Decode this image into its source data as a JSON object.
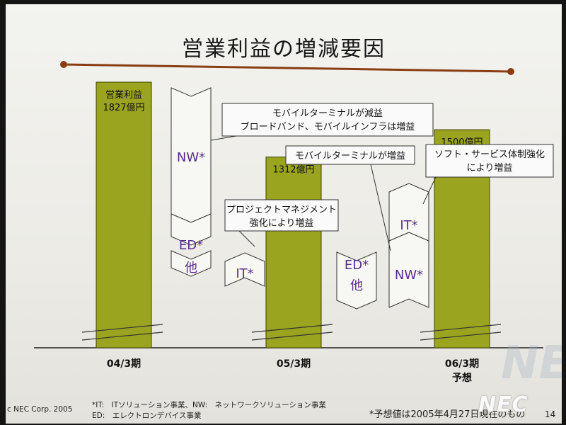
{
  "title": "営業利益の増減要因",
  "colors": {
    "bar": "#9aa41f",
    "bar_stroke": "#3c4004",
    "accent": "#8a3d12",
    "arrow_label": "#5a2d8a"
  },
  "chart_data": {
    "type": "bar",
    "subtype": "waterfall",
    "title": "営業利益の増減要因",
    "unit": "億円",
    "series_label": "営業利益",
    "categories": [
      "04/3期",
      "05/3期",
      "06/3期 予想"
    ],
    "totals": [
      {
        "category": "04/3期",
        "value": 1827,
        "label": "1827億円",
        "header": "営業利益"
      },
      {
        "category": "05/3期",
        "value": 1312,
        "label": "1312億円"
      },
      {
        "category": "06/3期 予想",
        "value": 1500,
        "label": "1500億円"
      }
    ],
    "x_labels": [
      {
        "line1": "04/3期",
        "line2": ""
      },
      {
        "line1": "05/3期",
        "line2": ""
      },
      {
        "line1": "06/3期",
        "line2": "予想"
      }
    ],
    "changes": [
      {
        "period": "04/3期→05/3期",
        "segments": [
          {
            "label": "NW*",
            "direction": "down"
          },
          {
            "label": "ED*",
            "direction": "down"
          },
          {
            "label": "他",
            "direction": "down"
          },
          {
            "label": "IT*",
            "direction": "up"
          }
        ]
      },
      {
        "period": "05/3期→06/3期",
        "segments": [
          {
            "label": "ED*",
            "direction": "down"
          },
          {
            "label": "他",
            "direction": "down"
          },
          {
            "label": "NW*",
            "direction": "up"
          },
          {
            "label": "IT*",
            "direction": "up"
          }
        ]
      }
    ],
    "annotations": [
      {
        "lines": [
          "モバイルターミナルが減益",
          "ブロードバンド、モバイルインフラは増益"
        ],
        "target": "NW*"
      },
      {
        "lines": [
          "プロジェクトマネジメント",
          "強化により増益"
        ],
        "target": "IT*"
      },
      {
        "lines": [
          "モバイルターミナルが増益"
        ],
        "target": "NW*"
      },
      {
        "lines": [
          "ソフト・サービス体制強化",
          "により増益"
        ],
        "target": "IT*"
      }
    ],
    "axis_break": true
  },
  "footer": {
    "copyright": "c NEC Corp. 2005",
    "legend_line1": "*IT:　ITソリューション事業、NW:　ネットワークソリューション事業",
    "legend_line2": "ED:　エレクトロンデバイス事業",
    "forecast_note": "*予想値は2005年4月27日現在のもの",
    "page": "14",
    "logo": "NEC"
  }
}
